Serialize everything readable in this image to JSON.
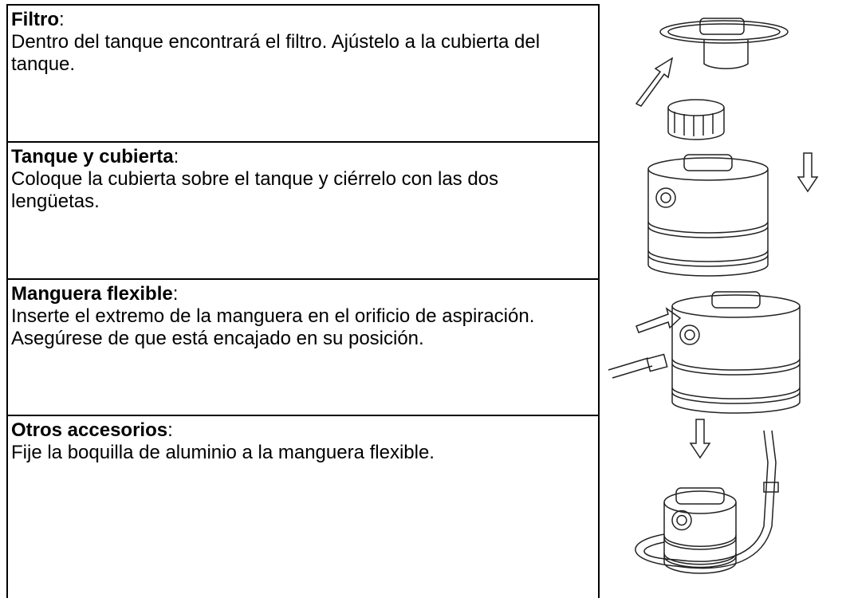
{
  "rows": [
    {
      "title": "Filtro",
      "colon": ":",
      "text": "Dentro del tanque encontrará el filtro. Ajústelo a la cubierta del tanque."
    },
    {
      "title": "Tanque y cubierta",
      "colon": ":",
      "text": "Coloque la cubierta sobre el tanque y ciérrelo con las dos lengüetas."
    },
    {
      "title": "Manguera flexible",
      "colon": ":",
      "text": "Inserte el extremo de la manguera en el orificio de aspiración. Asegúrese de que está encajado en su posición."
    },
    {
      "title": "Otros accesorios",
      "colon": ":",
      "text": "Fije la boquilla de aluminio a la manguera flexible."
    }
  ]
}
